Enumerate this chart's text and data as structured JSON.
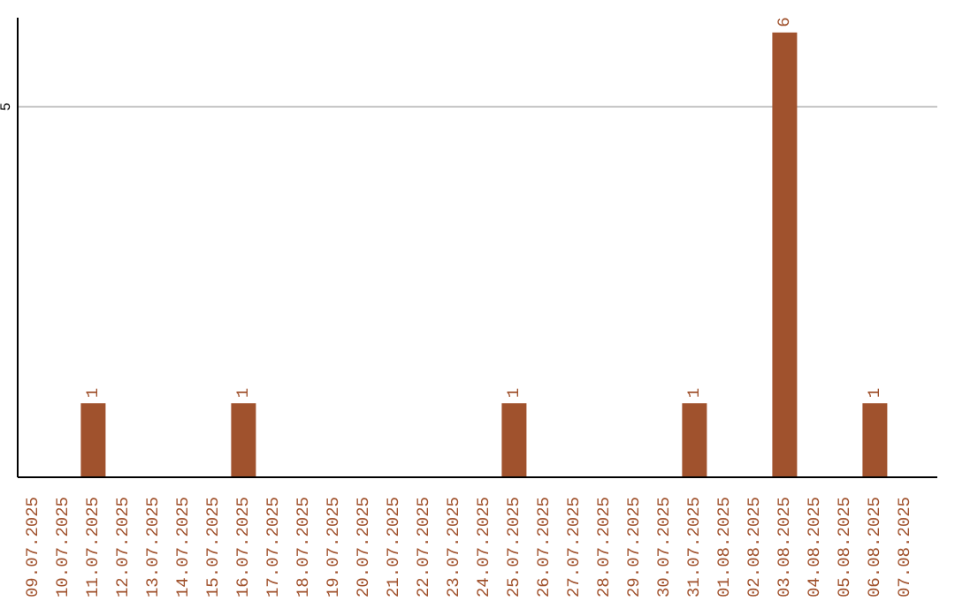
{
  "chart_data": {
    "type": "bar",
    "categories": [
      "09.07.2025",
      "10.07.2025",
      "11.07.2025",
      "12.07.2025",
      "13.07.2025",
      "14.07.2025",
      "15.07.2025",
      "16.07.2025",
      "17.07.2025",
      "18.07.2025",
      "19.07.2025",
      "20.07.2025",
      "21.07.2025",
      "22.07.2025",
      "23.07.2025",
      "24.07.2025",
      "25.07.2025",
      "26.07.2025",
      "27.07.2025",
      "28.07.2025",
      "29.07.2025",
      "30.07.2025",
      "31.07.2025",
      "01.08.2025",
      "02.08.2025",
      "03.08.2025",
      "04.08.2025",
      "05.08.2025",
      "06.08.2025",
      "07.08.2025"
    ],
    "values": [
      0,
      0,
      1,
      0,
      0,
      0,
      0,
      1,
      0,
      0,
      0,
      0,
      0,
      0,
      0,
      0,
      1,
      0,
      0,
      0,
      0,
      0,
      1,
      0,
      0,
      6,
      0,
      0,
      1,
      0
    ],
    "value_labels": [
      null,
      null,
      "1",
      null,
      null,
      null,
      null,
      "1",
      null,
      null,
      null,
      null,
      null,
      null,
      null,
      null,
      "1",
      null,
      null,
      null,
      null,
      null,
      "1",
      null,
      null,
      "6",
      null,
      null,
      "1",
      null
    ],
    "color": "#a0522d",
    "ylim": [
      0,
      6.2
    ],
    "yticks": [
      5
    ],
    "grid": "y"
  }
}
